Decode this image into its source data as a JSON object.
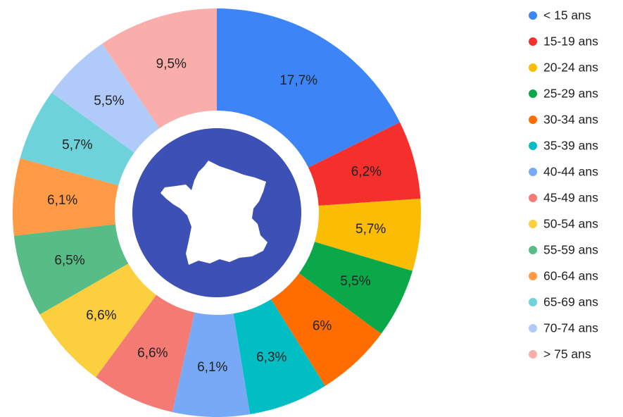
{
  "chart_data": {
    "type": "donut",
    "categories": [
      "< 15 ans",
      "15-19 ans",
      "20-24 ans",
      "25-29 ans",
      "30-34 ans",
      "35-39 ans",
      "40-44 ans",
      "45-49 ans",
      "50-54 ans",
      "55-59 ans",
      "60-64 ans",
      "65-69 ans",
      "70-74 ans",
      "> 75 ans"
    ],
    "values": [
      17.7,
      6.2,
      5.7,
      5.5,
      6,
      6.3,
      6.1,
      6.6,
      6.6,
      6.5,
      6.1,
      5.7,
      5.5,
      9.5
    ],
    "value_labels": [
      "17,7%",
      "6,2%",
      "5,7%",
      "5,5%",
      "6%",
      "6,3%",
      "6,1%",
      "6,6%",
      "6,6%",
      "6,5%",
      "6,1%",
      "5,7%",
      "5,5%",
      "9,5%"
    ],
    "colors": [
      "#3d85f6",
      "#f42f2c",
      "#fbbc04",
      "#0ba84a",
      "#ff6d01",
      "#00bec4",
      "#78a9f7",
      "#f47a74",
      "#fccf3e",
      "#58bc86",
      "#ff9a46",
      "#6dd2da",
      "#b0cbfa",
      "#f9aeab"
    ],
    "legend": "right"
  }
}
